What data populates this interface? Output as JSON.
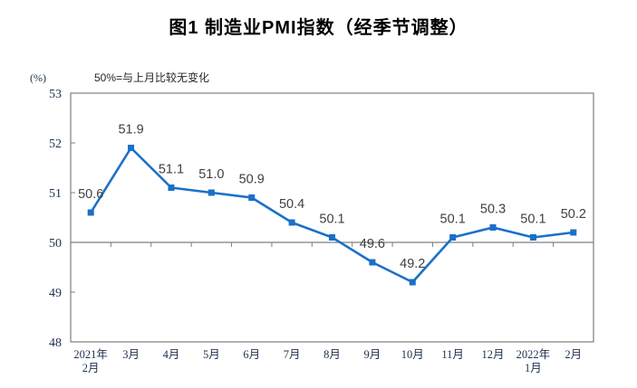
{
  "chart_data": {
    "type": "line",
    "title": "图1 制造业PMI指数（经季节调整）",
    "unit_label": "(%)",
    "annotation": "50%=与上月比较无变化",
    "categories": [
      "2021年\n2月",
      "3月",
      "4月",
      "5月",
      "6月",
      "7月",
      "8月",
      "9月",
      "10月",
      "11月",
      "12月",
      "2022年\n1月",
      "2月"
    ],
    "values": [
      50.6,
      51.9,
      51.1,
      51.0,
      50.9,
      50.4,
      50.1,
      49.6,
      49.2,
      50.1,
      50.3,
      50.1,
      50.2
    ],
    "ylim": [
      48,
      53
    ],
    "yticks": [
      48,
      49,
      50,
      51,
      52,
      53
    ],
    "reference_line": 50,
    "grid": false,
    "legend": false,
    "colors": {
      "line": "#1a70c8",
      "marker": "#1a70c8",
      "border": "#7f7f7f",
      "data_label": "#404040",
      "axis_text": "#1f3050"
    }
  }
}
